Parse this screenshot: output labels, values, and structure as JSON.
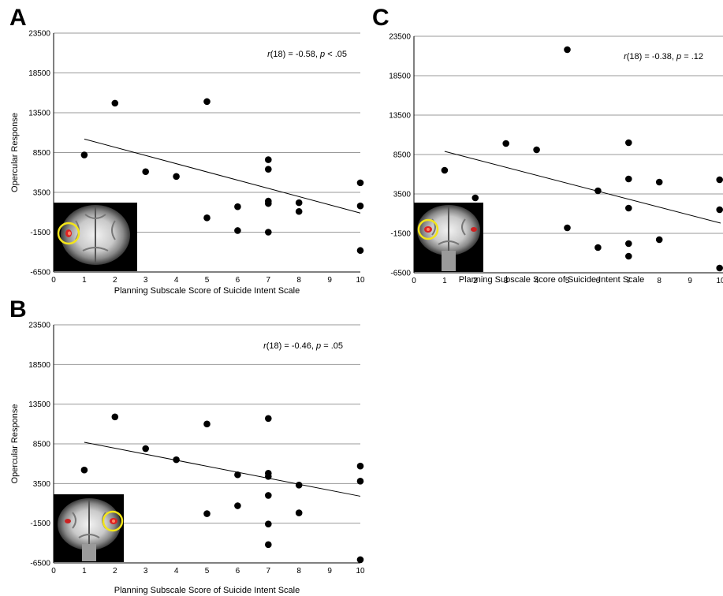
{
  "chart_data": [
    {
      "panel": "A",
      "type": "scatter",
      "xlabel": "Planning Subscale Score of Suicide Intent Scale",
      "ylabel": "Opercular Response",
      "xlim": [
        0,
        10
      ],
      "ylim": [
        -6500,
        23500
      ],
      "x_ticks": [
        "0",
        "1",
        "2",
        "3",
        "4",
        "5",
        "6",
        "7",
        "8",
        "9",
        "10"
      ],
      "y_ticks": [
        "-6500",
        "-1500",
        "3500",
        "8500",
        "13500",
        "18500",
        "23500"
      ],
      "grid": "horizontal",
      "annotation": {
        "r": "r",
        "r_rest": "(18) = -0.58, ",
        "p": "p",
        "p_rest": " < .05"
      },
      "inset": "coronal brain slice with circled opercular cluster (left)",
      "points": [
        [
          1,
          8200
        ],
        [
          2,
          14700
        ],
        [
          3,
          6100
        ],
        [
          4,
          5500
        ],
        [
          5,
          14900
        ],
        [
          5,
          300
        ],
        [
          6,
          1700
        ],
        [
          6,
          -1300
        ],
        [
          7,
          7600
        ],
        [
          7,
          6400
        ],
        [
          7,
          2400
        ],
        [
          7,
          2100
        ],
        [
          7,
          -1500
        ],
        [
          8,
          2200
        ],
        [
          8,
          1100
        ],
        [
          10,
          4700
        ],
        [
          10,
          1800
        ],
        [
          10,
          -3800
        ]
      ],
      "fit_line": [
        [
          1,
          10200
        ],
        [
          10,
          900
        ]
      ]
    },
    {
      "panel": "B",
      "type": "scatter",
      "xlabel": "Planning Subscale Score of Suicide Intent Scale",
      "ylabel": "Opercular Response",
      "xlim": [
        0,
        10
      ],
      "ylim": [
        -6500,
        23500
      ],
      "x_ticks": [
        "0",
        "1",
        "2",
        "3",
        "4",
        "5",
        "6",
        "7",
        "8",
        "9",
        "10"
      ],
      "y_ticks": [
        "-6500",
        "-1500",
        "3500",
        "8500",
        "13500",
        "18500",
        "23500"
      ],
      "grid": "horizontal",
      "annotation": {
        "r": "r",
        "r_rest": "(18) = -0.46, ",
        "p": "p",
        "p_rest": " = .05"
      },
      "inset": "coronal brain slice with circled opercular cluster (right)",
      "points": [
        [
          1,
          5200
        ],
        [
          2,
          11900
        ],
        [
          3,
          7900
        ],
        [
          4,
          6500
        ],
        [
          5,
          11000
        ],
        [
          5,
          -300
        ],
        [
          6,
          4600
        ],
        [
          6,
          700
        ],
        [
          7,
          11700
        ],
        [
          7,
          4800
        ],
        [
          7,
          4400
        ],
        [
          7,
          2000
        ],
        [
          7,
          -1600
        ],
        [
          7,
          -4200
        ],
        [
          8,
          3300
        ],
        [
          8,
          -200
        ],
        [
          10,
          5700
        ],
        [
          10,
          3800
        ],
        [
          10,
          -6100
        ]
      ],
      "fit_line": [
        [
          1,
          8700
        ],
        [
          10,
          1900
        ]
      ]
    },
    {
      "panel": "C",
      "type": "scatter",
      "xlabel": "Planning Subscale Score of Suicide Intent Scale",
      "ylabel": "",
      "xlim": [
        0,
        10
      ],
      "ylim": [
        -6500,
        23500
      ],
      "x_ticks": [
        "0",
        "1",
        "2",
        "3",
        "4",
        "5",
        "6",
        "7",
        "8",
        "9",
        "10"
      ],
      "y_ticks": [
        "-6500",
        "-1500",
        "3500",
        "8500",
        "13500",
        "18500",
        "23500"
      ],
      "grid": "horizontal",
      "annotation": {
        "r": "r",
        "r_rest": "(18) = -0.38, ",
        "p": "p",
        "p_rest": " = .12"
      },
      "inset": "coronal brain slice with bilateral clusters, left circled",
      "points": [
        [
          1,
          6500
        ],
        [
          2,
          3000
        ],
        [
          3,
          9900
        ],
        [
          4,
          9100
        ],
        [
          5,
          21800
        ],
        [
          5,
          -800
        ],
        [
          6,
          3900
        ],
        [
          6,
          -3300
        ],
        [
          7,
          10000
        ],
        [
          7,
          5400
        ],
        [
          7,
          1700
        ],
        [
          7,
          -2800
        ],
        [
          7,
          -4400
        ],
        [
          8,
          5000
        ],
        [
          8,
          -2300
        ],
        [
          10,
          5300
        ],
        [
          10,
          1500
        ],
        [
          10,
          -5900
        ]
      ],
      "fit_line": [
        [
          1,
          8900
        ],
        [
          10,
          -200
        ]
      ]
    }
  ]
}
